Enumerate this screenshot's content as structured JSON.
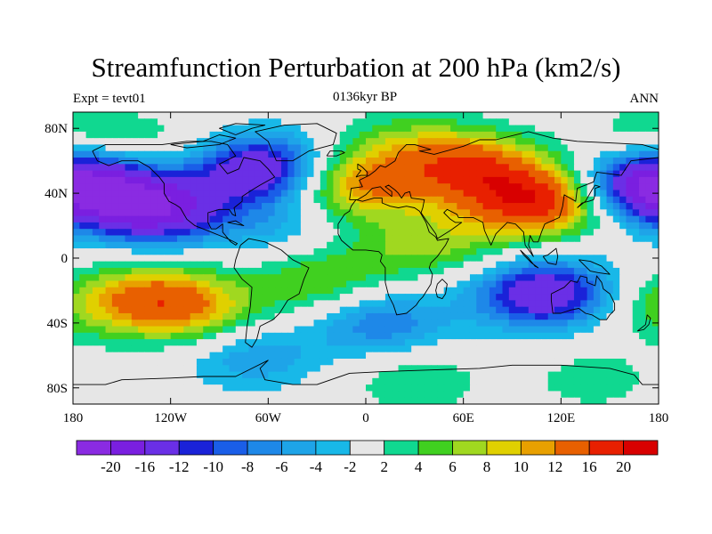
{
  "chart_data": {
    "type": "heatmap",
    "title": "Streamfunction Perturbation at 200 hPa (km2/s)",
    "left_label": "Expt = tevt01",
    "center_label": "0136kyr BP",
    "right_label": "ANN",
    "x_range": [
      -180,
      180
    ],
    "y_range": [
      -90,
      90
    ],
    "x_ticks": [
      {
        "value": -180,
        "label": "180"
      },
      {
        "value": -120,
        "label": "120W"
      },
      {
        "value": -60,
        "label": "60W"
      },
      {
        "value": 0,
        "label": "0"
      },
      {
        "value": 60,
        "label": "60E"
      },
      {
        "value": 120,
        "label": "120E"
      },
      {
        "value": 180,
        "label": "180"
      }
    ],
    "y_ticks": [
      {
        "value": 80,
        "label": "80N"
      },
      {
        "value": 40,
        "label": "40N"
      },
      {
        "value": 0,
        "label": "0"
      },
      {
        "value": -40,
        "label": "40S"
      },
      {
        "value": -80,
        "label": "80S"
      }
    ],
    "colorbar": {
      "levels": [
        "-20",
        "-16",
        "-12",
        "-10",
        "-8",
        "-6",
        "-4",
        "-2",
        "2",
        "4",
        "6",
        "8",
        "10",
        "12",
        "16",
        "20"
      ],
      "colors": [
        "#8a2be2",
        "#7a1fe0",
        "#6a2fe6",
        "#1a22d8",
        "#1a5ee8",
        "#1e88e8",
        "#1ea4e8",
        "#18b8e8",
        "#e6e6e6",
        "#10d890",
        "#40d020",
        "#a0d820",
        "#e0d000",
        "#e8a000",
        "#e86000",
        "#e82000",
        "#d80000"
      ]
    },
    "field_features": [
      {
        "lon": -130,
        "lat": 30,
        "value": -18
      },
      {
        "lon": -170,
        "lat": 45,
        "value": -12
      },
      {
        "lon": -65,
        "lat": 55,
        "value": -16
      },
      {
        "lon": -55,
        "lat": 20,
        "value": -4
      },
      {
        "lon": 170,
        "lat": 45,
        "value": -12
      },
      {
        "lon": 175,
        "lat": 75,
        "value": 4
      },
      {
        "lon": -130,
        "lat": 70,
        "value": 3
      },
      {
        "lon": -5,
        "lat": 45,
        "value": 12
      },
      {
        "lon": 25,
        "lat": 70,
        "value": 5
      },
      {
        "lon": 65,
        "lat": 55,
        "value": 14
      },
      {
        "lon": 105,
        "lat": 35,
        "value": 18
      },
      {
        "lon": 50,
        "lat": 10,
        "value": 5
      },
      {
        "lon": 15,
        "lat": 5,
        "value": 3
      },
      {
        "lon": -130,
        "lat": -25,
        "value": 12
      },
      {
        "lon": -100,
        "lat": -35,
        "value": 6
      },
      {
        "lon": -30,
        "lat": -15,
        "value": 6
      },
      {
        "lon": 10,
        "lat": -40,
        "value": -8
      },
      {
        "lon": 110,
        "lat": -22,
        "value": -16
      },
      {
        "lon": 180,
        "lat": -30,
        "value": 4
      },
      {
        "lon": -70,
        "lat": -60,
        "value": -6
      },
      {
        "lon": 30,
        "lat": -75,
        "value": 4
      },
      {
        "lon": 140,
        "lat": -75,
        "value": 3
      }
    ]
  }
}
